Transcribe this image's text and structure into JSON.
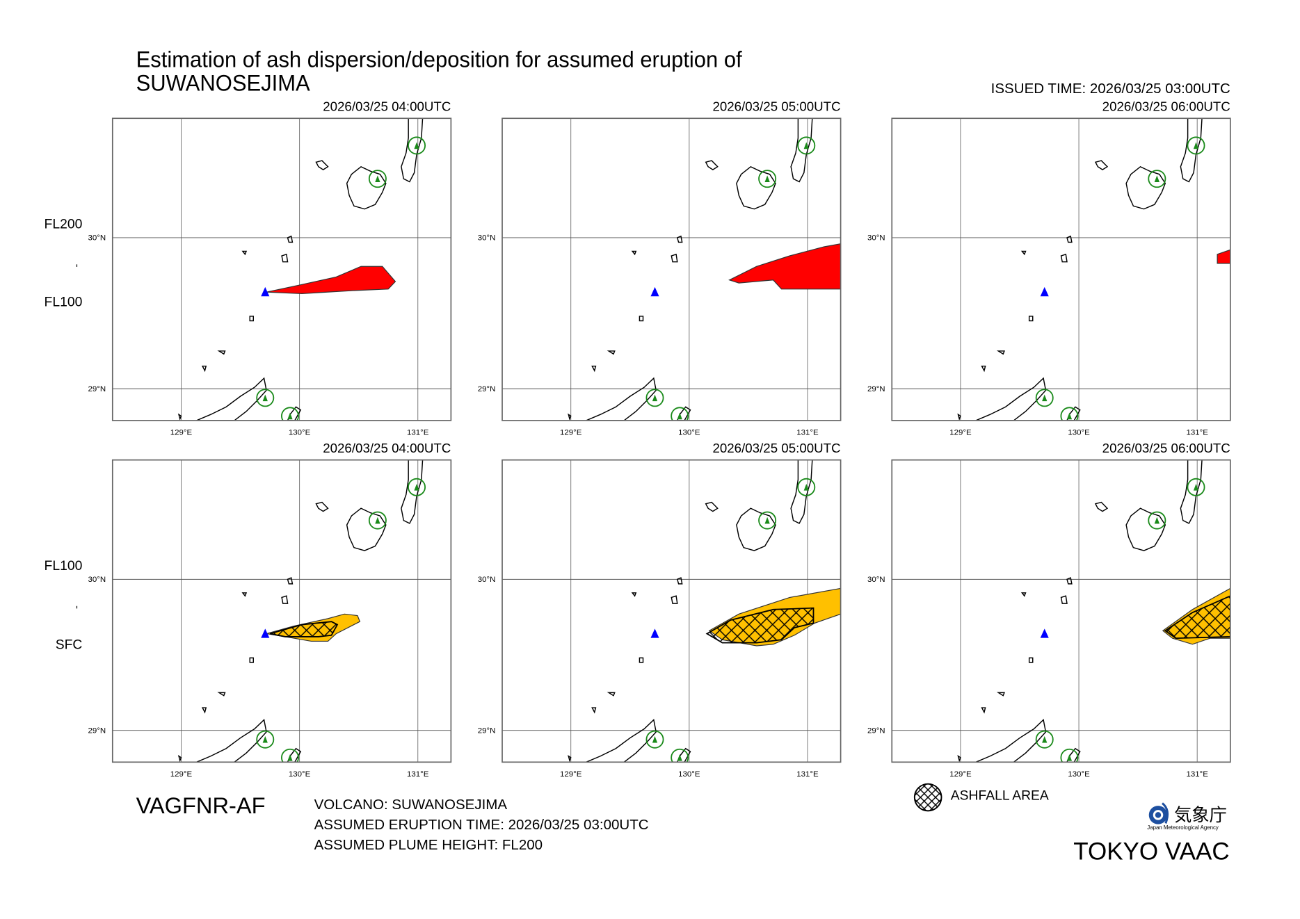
{
  "header": {
    "title_line1": "Estimation of ash dispersion/deposition for assumed eruption of",
    "title_line2": "SUWANOSEJIMA",
    "issued_time": "ISSUED TIME: 2026/03/25 03:00UTC"
  },
  "levels": {
    "top_row": {
      "upper": "FL200",
      "lower": "FL100"
    },
    "bottom_row": {
      "upper": "FL100",
      "lower": "SFC"
    }
  },
  "colors": {
    "ash_upper": "#ff0000",
    "ash_lower": "#ffc000",
    "volcano": "#0000ff",
    "volcano_marker": "#1a8a1a"
  },
  "chart_data": {
    "type": "map",
    "projection": "lon-lat",
    "xlim": [
      128.42,
      131.28
    ],
    "ylim": [
      28.79,
      30.79
    ],
    "x_ticks": [
      {
        "value": 129,
        "label": "129°E"
      },
      {
        "value": 130,
        "label": "130°E"
      },
      {
        "value": 131,
        "label": "131°E"
      }
    ],
    "y_ticks": [
      {
        "value": 30,
        "label": "30°N"
      },
      {
        "value": 29,
        "label": "29°N"
      }
    ],
    "volcano": {
      "name": "SUWANOSEJIMA",
      "lon": 129.71,
      "lat": 29.64
    },
    "panels": [
      {
        "time": "2026/03/25 04:00UTC",
        "layer": "FL200-FL100",
        "ash": [
          [
            129.72,
            29.64
          ],
          [
            130.02,
            29.69
          ],
          [
            130.31,
            29.74
          ],
          [
            130.52,
            29.81
          ],
          [
            130.7,
            29.81
          ],
          [
            130.81,
            29.71
          ],
          [
            130.75,
            29.66
          ],
          [
            130.45,
            29.65
          ],
          [
            130.02,
            29.63
          ]
        ],
        "ashfall": []
      },
      {
        "time": "2026/03/25 05:00UTC",
        "layer": "FL200-FL100",
        "ash": [
          [
            130.34,
            29.72
          ],
          [
            130.57,
            29.81
          ],
          [
            130.85,
            29.88
          ],
          [
            131.14,
            29.94
          ],
          [
            131.28,
            29.96
          ],
          [
            131.28,
            29.66
          ],
          [
            130.78,
            29.66
          ],
          [
            130.71,
            29.72
          ],
          [
            130.42,
            29.7
          ]
        ],
        "ashfall": []
      },
      {
        "time": "2026/03/25 06:00UTC",
        "layer": "FL200-FL100",
        "ash": [
          [
            131.17,
            29.89
          ],
          [
            131.28,
            29.92
          ],
          [
            131.28,
            29.83
          ],
          [
            131.17,
            29.83
          ]
        ],
        "ashfall": []
      },
      {
        "time": "2026/03/25 04:00UTC",
        "layer": "FL100-SFC",
        "ash": [
          [
            129.72,
            29.64
          ],
          [
            129.95,
            29.69
          ],
          [
            130.24,
            29.74
          ],
          [
            130.38,
            29.77
          ],
          [
            130.49,
            29.76
          ],
          [
            130.51,
            29.72
          ],
          [
            130.31,
            29.64
          ],
          [
            130.24,
            29.59
          ],
          [
            130.1,
            29.59
          ],
          [
            129.88,
            29.62
          ]
        ],
        "ashfall": [
          [
            129.75,
            29.64
          ],
          [
            130.02,
            29.7
          ],
          [
            130.27,
            29.72
          ],
          [
            130.32,
            29.7
          ],
          [
            130.27,
            29.63
          ],
          [
            130.16,
            29.62
          ],
          [
            129.88,
            29.62
          ]
        ]
      },
      {
        "time": "2026/03/25 05:00UTC",
        "layer": "FL100-SFC",
        "ash": [
          [
            130.17,
            29.66
          ],
          [
            130.42,
            29.77
          ],
          [
            130.85,
            29.88
          ],
          [
            131.28,
            29.94
          ],
          [
            131.28,
            29.77
          ],
          [
            131.06,
            29.71
          ],
          [
            130.89,
            29.63
          ],
          [
            130.71,
            29.57
          ],
          [
            130.57,
            29.56
          ],
          [
            130.28,
            29.6
          ]
        ],
        "ashfall": [
          [
            130.15,
            29.64
          ],
          [
            130.35,
            29.73
          ],
          [
            130.71,
            29.8
          ],
          [
            131.05,
            29.81
          ],
          [
            131.05,
            29.71
          ],
          [
            130.89,
            29.68
          ],
          [
            130.78,
            29.6
          ],
          [
            130.57,
            29.58
          ],
          [
            130.28,
            29.58
          ]
        ]
      },
      {
        "time": "2026/03/25 06:00UTC",
        "layer": "FL100-SFC",
        "ash": [
          [
            130.71,
            29.66
          ],
          [
            130.96,
            29.8
          ],
          [
            131.28,
            29.94
          ],
          [
            131.28,
            29.61
          ],
          [
            131.11,
            29.61
          ],
          [
            130.96,
            29.57
          ],
          [
            130.79,
            29.61
          ]
        ],
        "ashfall": [
          [
            130.73,
            29.66
          ],
          [
            130.96,
            29.78
          ],
          [
            131.28,
            29.89
          ],
          [
            131.28,
            29.62
          ],
          [
            130.82,
            29.61
          ]
        ]
      }
    ]
  },
  "footer": {
    "product_id": "VAGFNR-AF",
    "volcano": "VOLCANO: SUWANOSEJIMA",
    "eruption_time": "ASSUMED ERUPTION TIME: 2026/03/25 03:00UTC",
    "plume_height": "ASSUMED PLUME HEIGHT: FL200",
    "legend_ashfall": "ASHFALL AREA",
    "agency_jp": "気象庁",
    "agency_en": "Japan Meteorological Agency",
    "center": "TOKYO VAAC"
  }
}
